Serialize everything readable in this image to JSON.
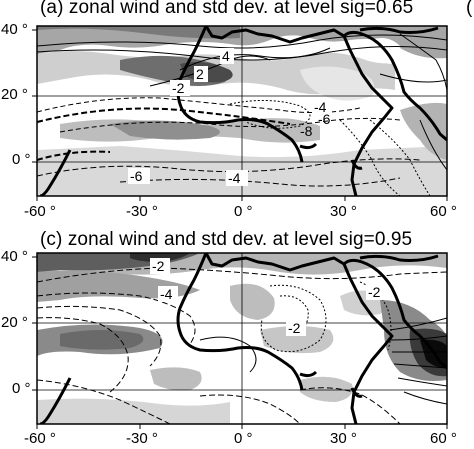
{
  "panels": [
    {
      "title": "(a) zonal wind and std dev. at level sig=0.65",
      "corner_mark": "(",
      "y_ticks": [
        "40 °",
        "20 °",
        "0 °"
      ],
      "x_ticks": [
        "-60 °",
        "-30 °",
        "0 °",
        "30 °",
        "60 °"
      ],
      "contour_labels": [
        "4",
        "2",
        "-2",
        "-4",
        "-6",
        "-8",
        "-6",
        "-4"
      ]
    },
    {
      "title": "(c) zonal wind and std dev. at level sig=0.95",
      "y_ticks": [
        "40 °",
        "20 °",
        "0 °"
      ],
      "x_ticks": [
        "-60 °",
        "-30 °",
        "0 °",
        "30 °",
        "60 °"
      ],
      "contour_labels": [
        "-2",
        "-4",
        "-2",
        "-2"
      ]
    }
  ]
}
